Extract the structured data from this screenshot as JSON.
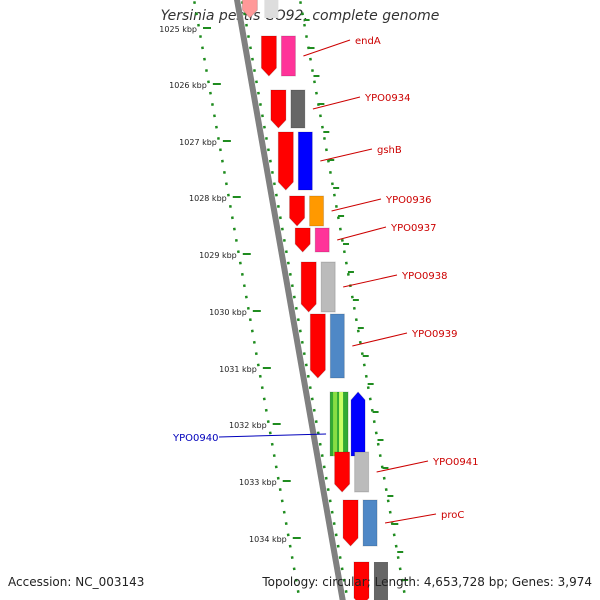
{
  "title": "Yersinia pestis CO92, complete genome",
  "footer": {
    "accession_label": "Accession:",
    "accession": "NC_003143",
    "topology_label": "Topology:",
    "topology": "circular",
    "length_label": "Length:",
    "length": "4,653,728 bp",
    "genes_label": "Genes:",
    "genes": "3,974"
  },
  "colors": {
    "forward_arrow": "#ff0000",
    "reverse_arrow": "#0000ff",
    "forward_label": "#cc0000",
    "reverse_label": "#0000bb",
    "backbone": "#808080",
    "ticks": "#1f8c1f"
  },
  "scale": {
    "unit": "kbp",
    "ticks": [
      "1025 kbp",
      "1026 kbp",
      "1027 kbp",
      "1028 kbp",
      "1029 kbp",
      "1030 kbp",
      "1031 kbp",
      "1032 kbp",
      "1033 kbp",
      "1034 kbp"
    ]
  },
  "genes": [
    {
      "label": "endA",
      "strand": "forward",
      "cog_color": "#ff3399"
    },
    {
      "label": "YPO0934",
      "strand": "forward",
      "cog_color": "#666666"
    },
    {
      "label": "gshB",
      "strand": "forward",
      "cog_color": "#0000ff"
    },
    {
      "label": "YPO0936",
      "strand": "forward",
      "cog_color": "#ff9900"
    },
    {
      "label": "YPO0937",
      "strand": "forward",
      "cog_color": "#ff3399"
    },
    {
      "label": "YPO0938",
      "strand": "forward",
      "cog_color": "#bbbbbb"
    },
    {
      "label": "YPO0939",
      "strand": "forward",
      "cog_color": "#4f88c6"
    },
    {
      "label": "YPO0940",
      "strand": "reverse",
      "cog_color": "#33aa33"
    },
    {
      "label": "YPO0941",
      "strand": "forward",
      "cog_color": "#bbbbbb"
    },
    {
      "label": "proC",
      "strand": "forward",
      "cog_color": "#4f88c6"
    }
  ]
}
